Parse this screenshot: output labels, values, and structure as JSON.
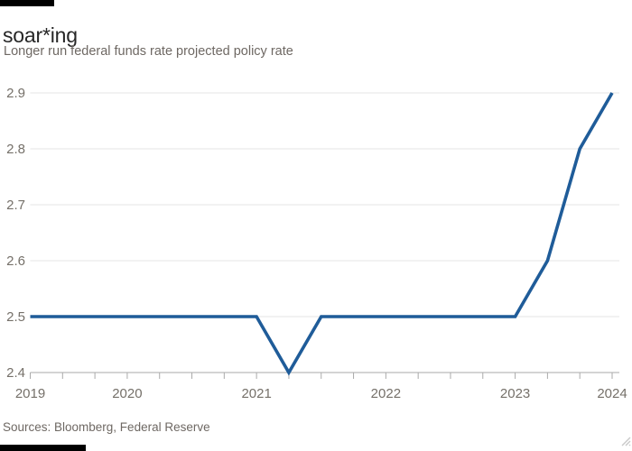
{
  "colors": {
    "slug_bar": "#000000",
    "line": "#1f5c99",
    "grid": "#e4e4e4",
    "axis": "#aaaaaa",
    "tick_text": "#757069",
    "title_text": "#262626",
    "muted_text": "#6e6863",
    "grip": "#c9c9c9"
  },
  "icons": {
    "resize_grip": "resize-grip"
  },
  "chart_data": {
    "type": "line",
    "title": "soar*ing",
    "subtitle": "Longer run federal funds rate projected policy rate",
    "source": "Sources: Bloomberg, Federal Reserve",
    "xlabel": "",
    "ylabel": "",
    "ylim": [
      2.4,
      2.9
    ],
    "yticks": [
      2.4,
      2.5,
      2.6,
      2.7,
      2.8,
      2.9
    ],
    "ytick_decimals": 1,
    "grid": "horizontal",
    "legend": "none",
    "x_tick_interval": "quarterly",
    "x_year_labels": [
      {
        "year": "2019",
        "index": 0
      },
      {
        "year": "2020",
        "index": 3
      },
      {
        "year": "2021",
        "index": 7
      },
      {
        "year": "2022",
        "index": 11
      },
      {
        "year": "2023",
        "index": 15
      },
      {
        "year": "2024",
        "index": 18
      }
    ],
    "series": [
      {
        "name": "Longer run federal funds rate projected policy rate",
        "values": [
          2.5,
          2.5,
          2.5,
          2.5,
          2.5,
          2.5,
          2.5,
          2.5,
          2.4,
          2.5,
          2.5,
          2.5,
          2.5,
          2.5,
          2.5,
          2.5,
          2.6,
          2.8,
          2.9
        ]
      }
    ]
  }
}
